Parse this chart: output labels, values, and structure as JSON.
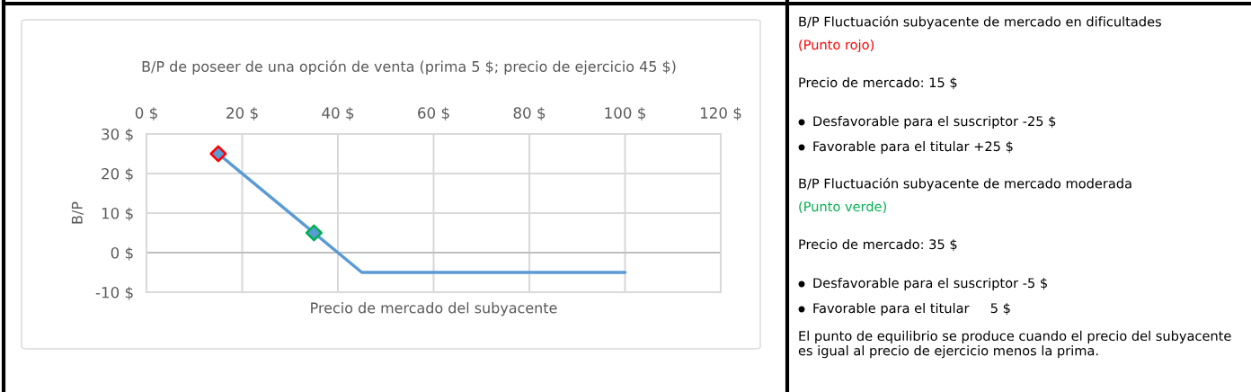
{
  "chart_data": {
    "type": "line",
    "title": "B/P de poseer de una opción de venta (prima 5 $; precio de ejercicio 45 $)",
    "xlabel": "Precio de mercado del subyacente",
    "ylabel": "B/P",
    "series": [
      {
        "color": "#5b9bd5",
        "x": [
          15,
          45,
          100
        ],
        "values": [
          25,
          -5,
          -5
        ],
        "marker": "none"
      },
      {
        "type": "scatter",
        "color": "#ff0000",
        "x": [
          15
        ],
        "values": [
          25
        ],
        "marker": "diamond"
      },
      {
        "type": "scatter",
        "color": "#00b050",
        "x": [
          35
        ],
        "values": [
          5
        ],
        "marker": "diamond"
      }
    ],
    "xlim": [
      0,
      120
    ],
    "xticks": [
      {
        "value": 0,
        "label": "0 $"
      },
      {
        "value": 20,
        "label": "20 $"
      },
      {
        "value": 40,
        "label": "40 $"
      },
      {
        "value": 60,
        "label": "60 $"
      },
      {
        "value": 80,
        "label": "80 $"
      },
      {
        "value": 100,
        "label": "100 $"
      },
      {
        "value": 120,
        "label": "120 $"
      }
    ],
    "ylim": [
      -10,
      30
    ],
    "yticks": [
      {
        "value": -10,
        "label": "-10 $"
      },
      {
        "value": 0,
        "label": "0 $"
      },
      {
        "value": 10,
        "label": "10 $"
      },
      {
        "value": 20,
        "label": "20 $"
      },
      {
        "value": 30,
        "label": "30 $"
      }
    ],
    "grid": true,
    "legend": false,
    "annotations": [
      "B/P Fluctuación subyacente de mercado en dificultades",
      "(Punto rojo)",
      "Precio de mercado: 15 $",
      "Desfavorable para el suscriptor -25 $",
      "Favorable para el titular +25 $",
      "B/P Fluctuación subyacente de mercado moderada",
      "(Punto verde)",
      "Precio de mercado: 35 $",
      "Desfavorable para el suscriptor -5 $",
      "Favorable para el titular     5 $",
      "El punto de equilibrio se produce cuando el precio del subyacente es igual al precio de ejercicio menos la prima."
    ]
  }
}
